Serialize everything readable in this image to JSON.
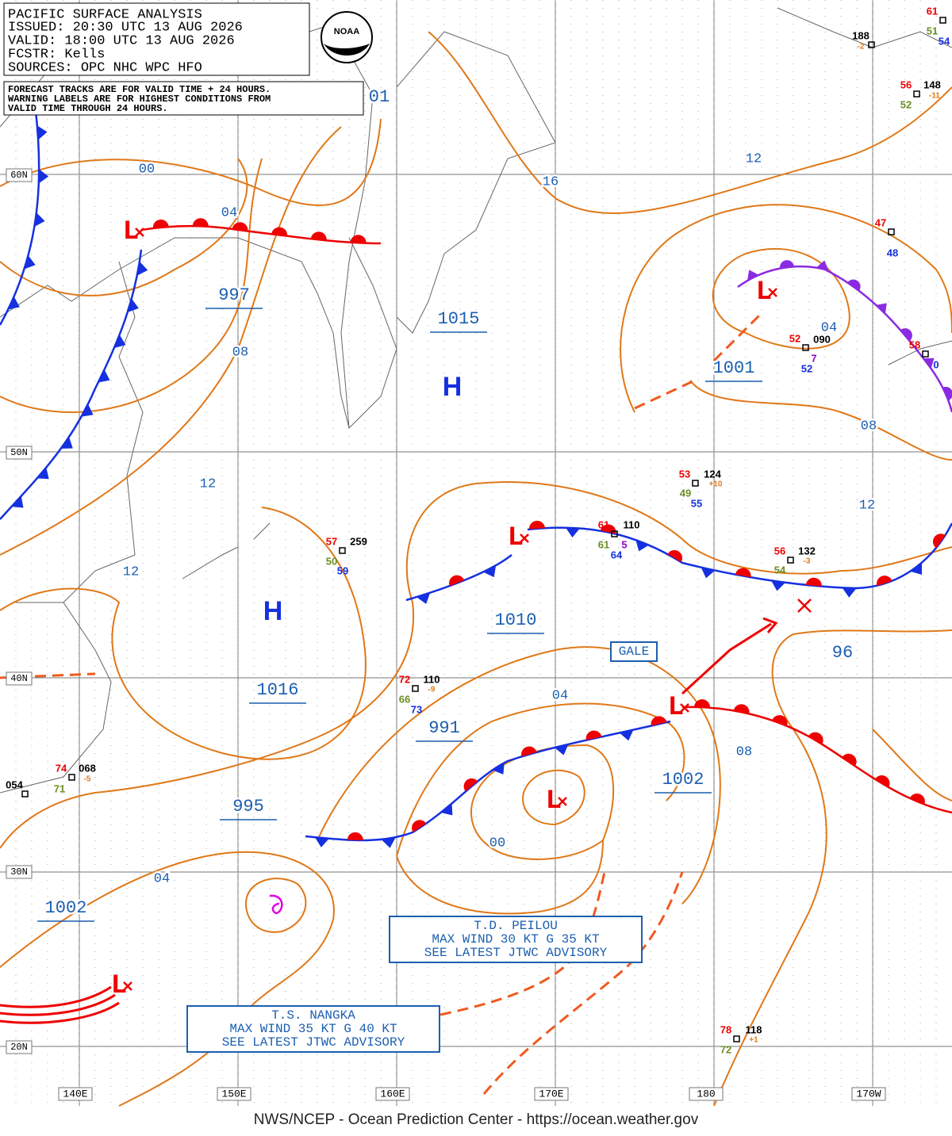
{
  "header": {
    "lines": [
      "PACIFIC SURFACE ANALYSIS",
      "ISSUED:  20:30 UTC 13 AUG 2026",
      "VALID:  18:00 UTC 13 AUG 2026",
      "FCSTR:  Kells",
      "SOURCES: OPC NHC WPC HFO"
    ]
  },
  "notice": {
    "lines": [
      "FORECAST TRACKS ARE FOR VALID TIME + 24 HOURS.",
      "WARNING LABELS ARE FOR HIGHEST CONDITIONS FROM",
      "VALID TIME THROUGH 24 HOURS."
    ]
  },
  "logo": {
    "text": "NOAA"
  },
  "isobar_labels": [
    "01",
    "00",
    "04",
    "08",
    "12",
    "12",
    "16",
    "12",
    "04",
    "08",
    "12",
    "96",
    "04",
    "08",
    "00",
    "04"
  ],
  "central_pressures": [
    "997",
    "1015",
    "1001",
    "1010",
    "1016",
    "991",
    "1002",
    "995",
    "1002"
  ],
  "highs": [
    "H",
    "H"
  ],
  "lows": [
    "L",
    "L",
    "L",
    "L",
    "L",
    "L"
  ],
  "gale": {
    "text": "GALE"
  },
  "advisories": [
    {
      "lines": [
        "T.D. PEILOU",
        "MAX WIND 30 KT G 35 KT",
        "SEE LATEST JTWC ADVISORY"
      ]
    },
    {
      "lines": [
        "T.S. NANGKA",
        "MAX WIND 35 KT G 40 KT",
        "SEE LATEST JTWC ADVISORY"
      ]
    }
  ],
  "station_plots": [
    {
      "texts": [
        "188",
        "-2"
      ]
    },
    {
      "texts": [
        "61",
        "51",
        "54"
      ]
    },
    {
      "texts": [
        "56",
        "148",
        "52",
        "-11"
      ]
    },
    {
      "texts": [
        "47",
        "48"
      ]
    },
    {
      "texts": [
        "52",
        "090",
        "7",
        "52"
      ]
    },
    {
      "texts": [
        "58",
        "0"
      ]
    },
    {
      "texts": [
        "53",
        "124",
        "+10",
        "49",
        "55"
      ]
    },
    {
      "texts": [
        "61",
        "110",
        "61",
        "5",
        "64"
      ]
    },
    {
      "texts": [
        "56",
        "132",
        "-3",
        "54"
      ]
    },
    {
      "texts": [
        "57",
        "259",
        "50",
        "59"
      ]
    },
    {
      "texts": [
        "72",
        "110",
        "-9",
        "66",
        "73"
      ]
    },
    {
      "texts": [
        "74",
        "068",
        "-5",
        "71"
      ]
    },
    {
      "texts": [
        "054"
      ]
    },
    {
      "texts": [
        "78",
        "118",
        "+1",
        "72"
      ]
    }
  ],
  "latitude_labels": [
    "60N",
    "50N",
    "40N",
    "30N",
    "20N"
  ],
  "longitude_labels": [
    "140E",
    "150E",
    "160E",
    "170E",
    "180",
    "170W"
  ],
  "footer": {
    "text": "NWS/NCEP - Ocean Prediction Center - https://ocean.weather.gov"
  }
}
